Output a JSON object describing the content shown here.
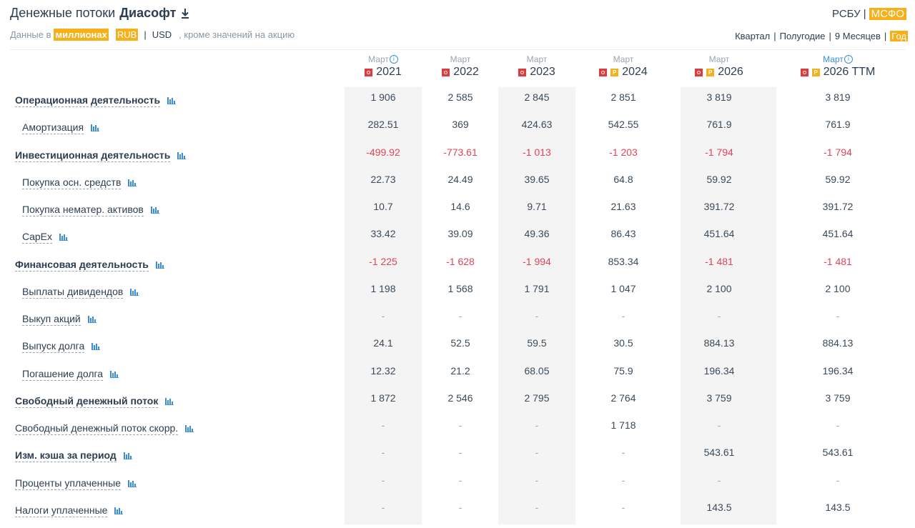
{
  "header": {
    "title": "Денежные потоки",
    "company": "Диасофт",
    "units_prefix": "Данные в",
    "units_scale": "миллионах",
    "currency_active": "RUB",
    "currency_sep": "|",
    "currency_alt": "USD",
    "units_suffix": ", кроме значений на акцию"
  },
  "standards": {
    "items": [
      "РСБУ",
      "МСФО"
    ],
    "active": "МСФО"
  },
  "periods": {
    "items": [
      "Квартал",
      "Полугодие",
      "9 Месяцев",
      "Год"
    ],
    "active": "Год"
  },
  "colors": {
    "accent": "#f5b01a",
    "negative": "#e0445a",
    "link": "#3c8dd9",
    "text": "#2d3e50",
    "pdf": "#e0393e"
  },
  "columns": [
    {
      "month": "Март",
      "year": "2021",
      "info": true,
      "pdf": true,
      "p": false,
      "shaded": true
    },
    {
      "month": "Март",
      "year": "2022",
      "info": false,
      "pdf": true,
      "p": false,
      "shaded": false
    },
    {
      "month": "Март",
      "year": "2023",
      "info": false,
      "pdf": true,
      "p": false,
      "shaded": true
    },
    {
      "month": "Март",
      "year": "2024",
      "info": false,
      "pdf": true,
      "p": true,
      "shaded": false
    },
    {
      "month": "Март",
      "year": "2026",
      "info": false,
      "pdf": true,
      "p": true,
      "shaded": true
    },
    {
      "month": "Март",
      "year": "2026 TTM",
      "info": true,
      "pdf": true,
      "p": true,
      "shaded": false,
      "link": true
    }
  ],
  "rows": [
    {
      "label": "Операционная деятельность",
      "bold": true,
      "indent": false,
      "values": [
        "1 906",
        "2 585",
        "2 845",
        "2 851",
        "3 819",
        "3 819"
      ]
    },
    {
      "label": "Амортизация",
      "bold": false,
      "indent": true,
      "values": [
        "282.51",
        "369",
        "424.63",
        "542.55",
        "761.9",
        "761.9"
      ]
    },
    {
      "label": "Инвестиционная деятельность",
      "bold": true,
      "indent": false,
      "values": [
        "-499.92",
        "-773.61",
        "-1 013",
        "-1 203",
        "-1 794",
        "-1 794"
      ]
    },
    {
      "label": "Покупка осн. средств",
      "bold": false,
      "indent": true,
      "values": [
        "22.73",
        "24.49",
        "39.65",
        "64.8",
        "59.92",
        "59.92"
      ]
    },
    {
      "label": "Покупка нематер. активов",
      "bold": false,
      "indent": true,
      "values": [
        "10.7",
        "14.6",
        "9.71",
        "21.63",
        "391.72",
        "391.72"
      ]
    },
    {
      "label": "CapEx",
      "bold": false,
      "indent": true,
      "values": [
        "33.42",
        "39.09",
        "49.36",
        "86.43",
        "451.64",
        "451.64"
      ]
    },
    {
      "label": "Финансовая деятельность",
      "bold": true,
      "indent": false,
      "values": [
        "-1 225",
        "-1 628",
        "-1 994",
        "853.34",
        "-1 481",
        "-1 481"
      ]
    },
    {
      "label": "Выплаты дивидендов",
      "bold": false,
      "indent": true,
      "values": [
        "1 198",
        "1 568",
        "1 791",
        "1 047",
        "2 100",
        "2 100"
      ]
    },
    {
      "label": "Выкуп акций",
      "bold": false,
      "indent": true,
      "values": [
        "-",
        "-",
        "-",
        "-",
        "-",
        "-"
      ]
    },
    {
      "label": "Выпуск долга",
      "bold": false,
      "indent": true,
      "values": [
        "24.1",
        "52.5",
        "59.5",
        "30.5",
        "884.13",
        "884.13"
      ]
    },
    {
      "label": "Погашение долга",
      "bold": false,
      "indent": true,
      "values": [
        "12.32",
        "21.2",
        "68.05",
        "75.9",
        "196.34",
        "196.34"
      ]
    },
    {
      "label": "Свободный денежный поток",
      "bold": true,
      "indent": false,
      "values": [
        "1 872",
        "2 546",
        "2 795",
        "2 764",
        "3 759",
        "3 759"
      ]
    },
    {
      "label": "Свободный денежный поток скорр.",
      "bold": false,
      "indent": false,
      "values": [
        "-",
        "-",
        "-",
        "1 718",
        "-",
        "-"
      ]
    },
    {
      "label": "Изм. кэша за период",
      "bold": true,
      "indent": false,
      "values": [
        "-",
        "-",
        "-",
        "-",
        "543.61",
        "543.61"
      ]
    },
    {
      "label": "Проценты уплаченные",
      "bold": false,
      "indent": false,
      "values": [
        "-",
        "-",
        "-",
        "-",
        "-",
        "-"
      ]
    },
    {
      "label": "Налоги уплаченные",
      "bold": false,
      "indent": false,
      "values": [
        "-",
        "-",
        "-",
        "-",
        "143.5",
        "143.5"
      ]
    }
  ]
}
